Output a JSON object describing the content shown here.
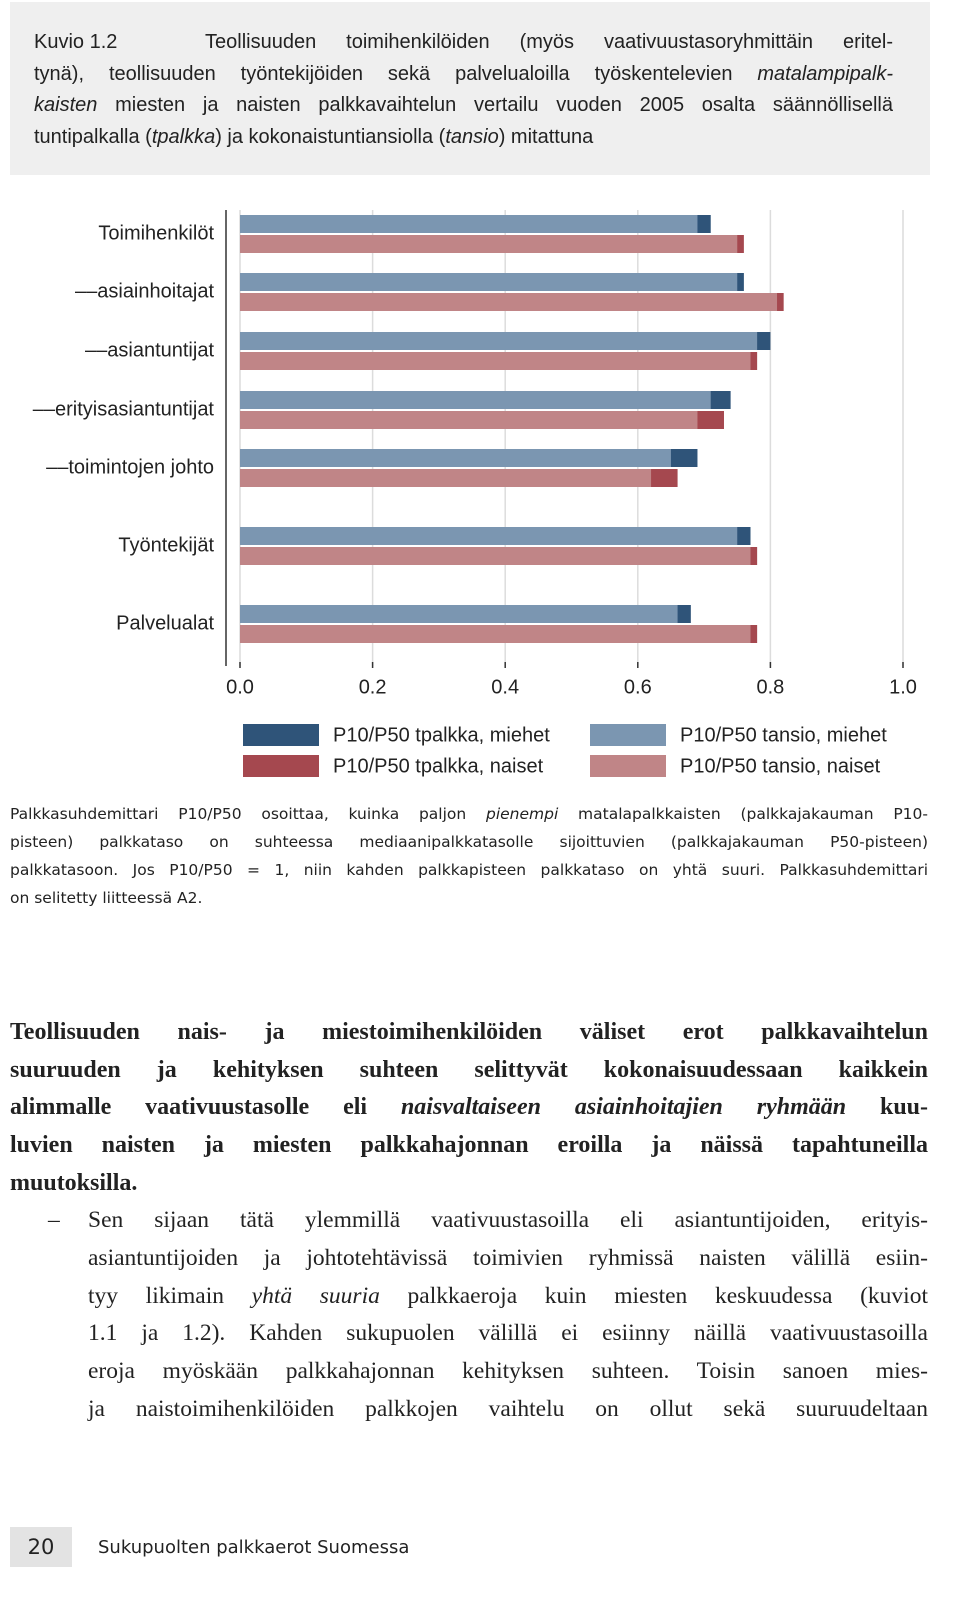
{
  "caption": {
    "label": "Kuvio 1.2",
    "lines": [
      [
        "Teollisuuden toimihenkilöiden (myös vaativuustasoryhmittäin eritel-"
      ],
      [
        "tynä), teollisuuden työntekijöiden sekä palvelualoilla työskentelevien ",
        {
          "text": "matalampipalk-",
          "italic": true
        }
      ],
      [
        {
          "text": "kaisten",
          "italic": true
        },
        " miesten ja naisten palkkavaihtelun vertailu vuoden 2005 osalta säännöllisellä"
      ],
      [
        "tuntipalkalla (",
        {
          "text": "tpalkka",
          "italic": true
        },
        ") ja kokonaistuntiansiolla (",
        {
          "text": "tansio",
          "italic": true
        },
        ") mitattuna"
      ]
    ]
  },
  "chart_data": {
    "type": "bar",
    "orientation": "horizontal",
    "categories": [
      "Toimihenkilöt",
      "––asiainhoitajat",
      "––asiantuntijat",
      "––erityisasiantuntijat",
      "––toimintojen johto",
      "Työntekijät",
      "Palvelualat"
    ],
    "series": [
      {
        "name": "P10/P50 tpalkka, miehet",
        "color": "#2f5479",
        "values": [
          0.71,
          0.76,
          0.8,
          0.74,
          0.69,
          0.77,
          0.68
        ]
      },
      {
        "name": "P10/P50 tpalkka, naiset",
        "color": "#a5484f",
        "values": [
          0.76,
          0.82,
          0.78,
          0.73,
          0.66,
          0.78,
          0.78
        ]
      },
      {
        "name": "P10/P50 tansio, miehet",
        "color": "#7b96b1",
        "values": [
          0.69,
          0.75,
          0.78,
          0.71,
          0.65,
          0.75,
          0.66
        ]
      },
      {
        "name": "P10/P50 tansio, naiset",
        "color": "#c08587",
        "values": [
          0.75,
          0.81,
          0.77,
          0.69,
          0.62,
          0.77,
          0.77
        ]
      }
    ],
    "xlim": [
      0,
      1
    ],
    "xticks": [
      {
        "value": 0,
        "label": "0.0"
      },
      {
        "value": 0.2,
        "label": "0.2"
      },
      {
        "value": 0.4,
        "label": "0.4"
      },
      {
        "value": 0.6,
        "label": "0.6"
      },
      {
        "value": 0.8,
        "label": "0.8"
      },
      {
        "value": 1,
        "label": "1.0"
      }
    ],
    "grid": true
  },
  "note": {
    "lines": [
      [
        "Palkkasuhdemittari P10/P50 osoittaa, kuinka paljon ",
        {
          "text": "pienempi",
          "italic": true
        },
        " matalapalkkaisten (palkkajakauman P10-"
      ],
      [
        "pisteen) palkkataso on suhteessa mediaanipalkkatasolle sijoittuvien (palkkajakauman P50-pisteen)"
      ],
      [
        "palkkatasoon. Jos P10/P50 = 1, niin kahden palkkapisteen palkkataso on yhtä suuri. Palkkasuhdemittari"
      ],
      [
        "on selitetty liitteessä A2."
      ]
    ]
  },
  "body": {
    "lines": [
      [
        "Teollisuuden nais- ja miestoimihenkilöiden väliset erot palkkavaihtelun"
      ],
      [
        "suuruuden ja kehityksen suhteen selittyvät kokonaisuudessaan kaikkein"
      ],
      [
        "alimmalle vaativuustasolle eli ",
        {
          "text": "naisvaltaiseen asiainhoitajien ryhmään",
          "italic": true
        },
        " kuu-"
      ],
      [
        "luvien naisten ja miesten palkkahajonnan eroilla ja näissä tapahtuneilla"
      ],
      [
        "muutoksilla."
      ]
    ],
    "dash": "–",
    "item": [
      [
        "Sen sijaan tätä ylemmillä vaativuustasoilla eli asiantuntijoiden, erityis-"
      ],
      [
        "asiantuntijoiden ja johtotehtävissä toimivien ryhmissä naisten välillä esiin-"
      ],
      [
        "tyy likimain ",
        {
          "text": "yhtä suuria",
          "italic": true
        },
        " palkkaeroja kuin miesten keskuudessa (kuviot"
      ],
      [
        "1.1 ja 1.2). Kahden sukupuolen välillä ei esiinny näillä vaativuustasoilla"
      ],
      [
        "eroja myöskään palkkahajonnan kehityksen suhteen. Toisin sanoen mies-"
      ],
      [
        "ja naistoimihenkilöiden palkkojen vaihtelu on ollut sekä suuruudeltaan"
      ]
    ]
  },
  "footer": {
    "page": "20",
    "title": "Sukupuolten palkkaerot Suomessa"
  }
}
